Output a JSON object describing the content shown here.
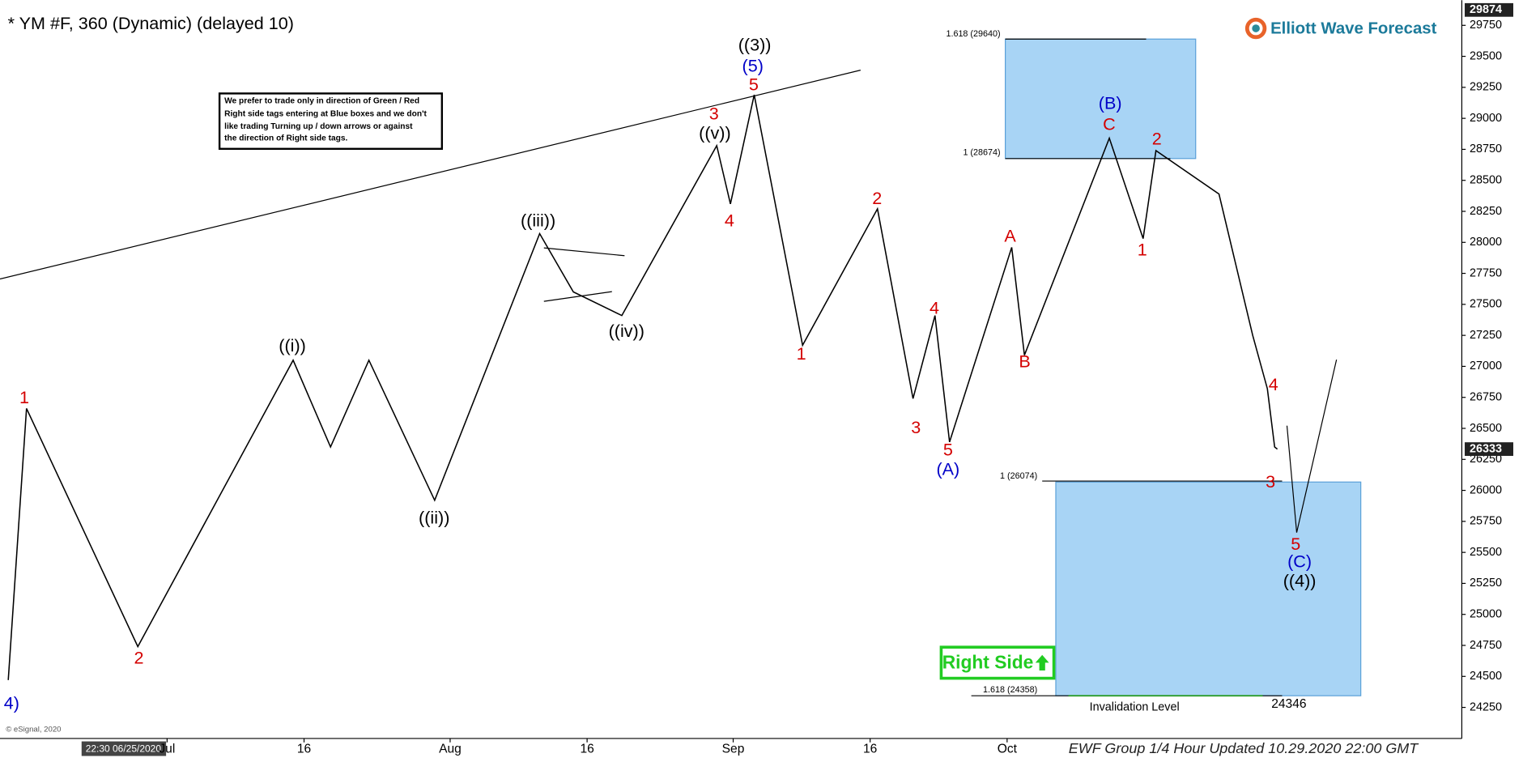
{
  "chart_data": {
    "type": "line",
    "title": "* YM #F, 360 (Dynamic) (delayed 10)",
    "x": [
      -17.4,
      -15.4,
      -3.2,
      13.8,
      17.9,
      22.1,
      29.3,
      40.8,
      44.5,
      49.8,
      60.2,
      61.7,
      64.3,
      69.6,
      77.8,
      81.7,
      84.1,
      85.7,
      92.5,
      93.9,
      103.2,
      106.9,
      108.3,
      115.2,
      118.9,
      120.5,
      121.3,
      121.6
    ],
    "values": [
      24470,
      26660,
      24740,
      27050,
      26350,
      27050,
      25920,
      28070,
      27600,
      27410,
      28780,
      28310,
      29190,
      27170,
      28270,
      26740,
      27410,
      26390,
      27960,
      27090,
      28840,
      28030,
      28740,
      28390,
      27250,
      26820,
      26350,
      26333
    ],
    "color": "#000000",
    "xlim": [
      -18.3,
      141.8
    ],
    "xticks": [
      {
        "value": 0,
        "label": "Jul"
      },
      {
        "value": 15,
        "label": "16"
      },
      {
        "value": 31,
        "label": "Aug"
      },
      {
        "value": 46,
        "label": "16"
      },
      {
        "value": 62,
        "label": "Sep"
      },
      {
        "value": 77,
        "label": "16"
      },
      {
        "value": 92,
        "label": "Oct"
      }
    ],
    "ylim": [
      24015,
      29890
    ],
    "yticks": [
      24250,
      24500,
      24750,
      25000,
      25250,
      25500,
      25750,
      26000,
      26250,
      26500,
      26750,
      27000,
      27250,
      27500,
      27750,
      28000,
      28250,
      28500,
      28750,
      29000,
      29250,
      29500,
      29750
    ],
    "high_tag": 29874,
    "last_price": 26333,
    "wave_labels": [
      {
        "text": "1",
        "color": "#d40000"
      },
      {
        "text": "2",
        "color": "#d40000"
      },
      {
        "text": "4)",
        "color": "#0000c8"
      },
      {
        "text": "((i))",
        "color": "#000000"
      },
      {
        "text": "((ii))",
        "color": "#000000"
      },
      {
        "text": "((iii))",
        "color": "#000000"
      },
      {
        "text": "((iv))",
        "color": "#000000"
      },
      {
        "text": "((v))",
        "color": "#000000"
      },
      {
        "text": "3",
        "color": "#d40000"
      },
      {
        "text": "4",
        "color": "#d40000"
      },
      {
        "text": "5",
        "color": "#d40000"
      },
      {
        "text": "(5)",
        "color": "#0000c8"
      },
      {
        "text": "((3))",
        "color": "#000000"
      },
      {
        "text": "1",
        "color": "#d40000"
      },
      {
        "text": "2",
        "color": "#d40000"
      },
      {
        "text": "3",
        "color": "#d40000"
      },
      {
        "text": "4",
        "color": "#d40000"
      },
      {
        "text": "5",
        "color": "#d40000"
      },
      {
        "text": "(A)",
        "color": "#0000c8"
      },
      {
        "text": "A",
        "color": "#d40000"
      },
      {
        "text": "B",
        "color": "#d40000"
      },
      {
        "text": "C",
        "color": "#d40000"
      },
      {
        "text": "(B)",
        "color": "#0000c8"
      },
      {
        "text": "1",
        "color": "#d40000"
      },
      {
        "text": "2",
        "color": "#d40000"
      },
      {
        "text": "4",
        "color": "#d40000"
      },
      {
        "text": "3",
        "color": "#d40000"
      },
      {
        "text": "5",
        "color": "#d40000"
      },
      {
        "text": "(C)",
        "color": "#0000c8"
      },
      {
        "text": "((4))",
        "color": "#000000"
      }
    ],
    "fib_levels": [
      "1.618 (29640)",
      "1 (28674)",
      "1 (26074)",
      "1.618 (24358)"
    ],
    "invalidation_label": "Invalidation Level",
    "invalidation_value": 24346,
    "note": [
      "We prefer to trade only in direction of Green / Red",
      "Right side tags entering at Blue boxes and we don't",
      "like trading Turning up / down arrows or against",
      "the direction of Right side tags."
    ],
    "right_side": "Right Side",
    "logo": "Elliott Wave Forecast",
    "footer": "EWF Group 1/4 Hour Updated 10.29.2020 22:00 GMT",
    "copyright": "© eSignal, 2020",
    "timestamp": "22:30 06/25/2020"
  }
}
